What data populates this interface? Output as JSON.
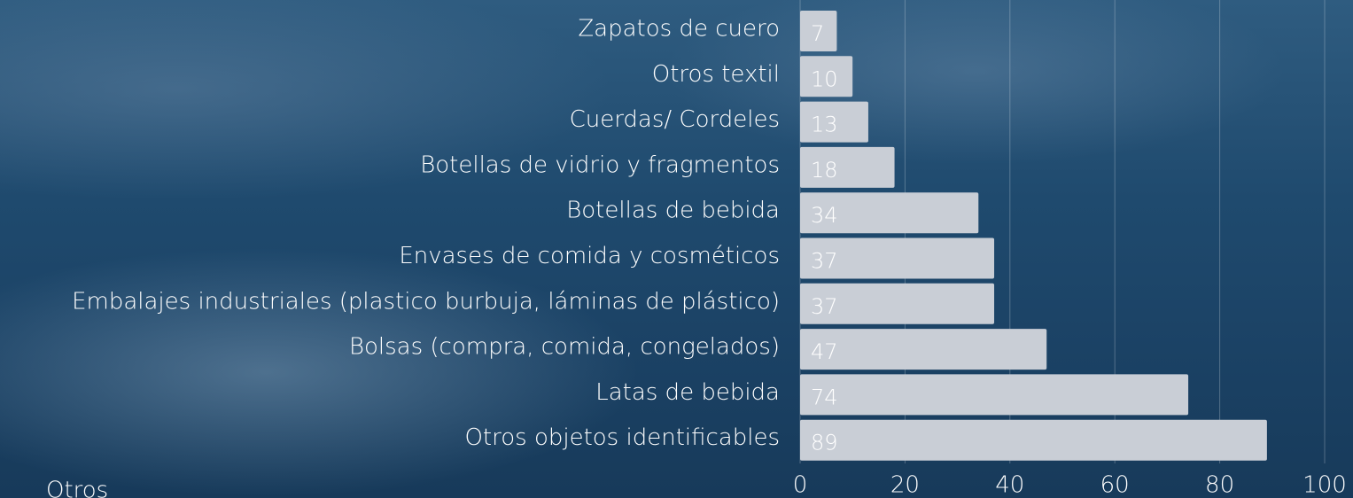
{
  "chart_data": {
    "type": "bar",
    "orientation": "horizontal",
    "categories": [
      "Zapatos de cuero",
      "Otros textil",
      "Cuerdas/ Cordeles",
      "Botellas de vidrio y fragmentos",
      "Botellas de bebida",
      "Envases de comida y cosméticos",
      "Embalajes industriales (plastico burbuja, láminas de plástico)",
      "Bolsas (compra, comida, congelados)",
      "Latas de bebida",
      "Otros objetos identificables"
    ],
    "values": [
      7,
      10,
      13,
      18,
      34,
      37,
      37,
      47,
      74,
      89
    ],
    "color": "#c9ced6",
    "xlim": [
      0,
      100
    ],
    "xticks": [
      0,
      20,
      40,
      60,
      80,
      100
    ],
    "grid": true,
    "annotation": "Otros"
  }
}
